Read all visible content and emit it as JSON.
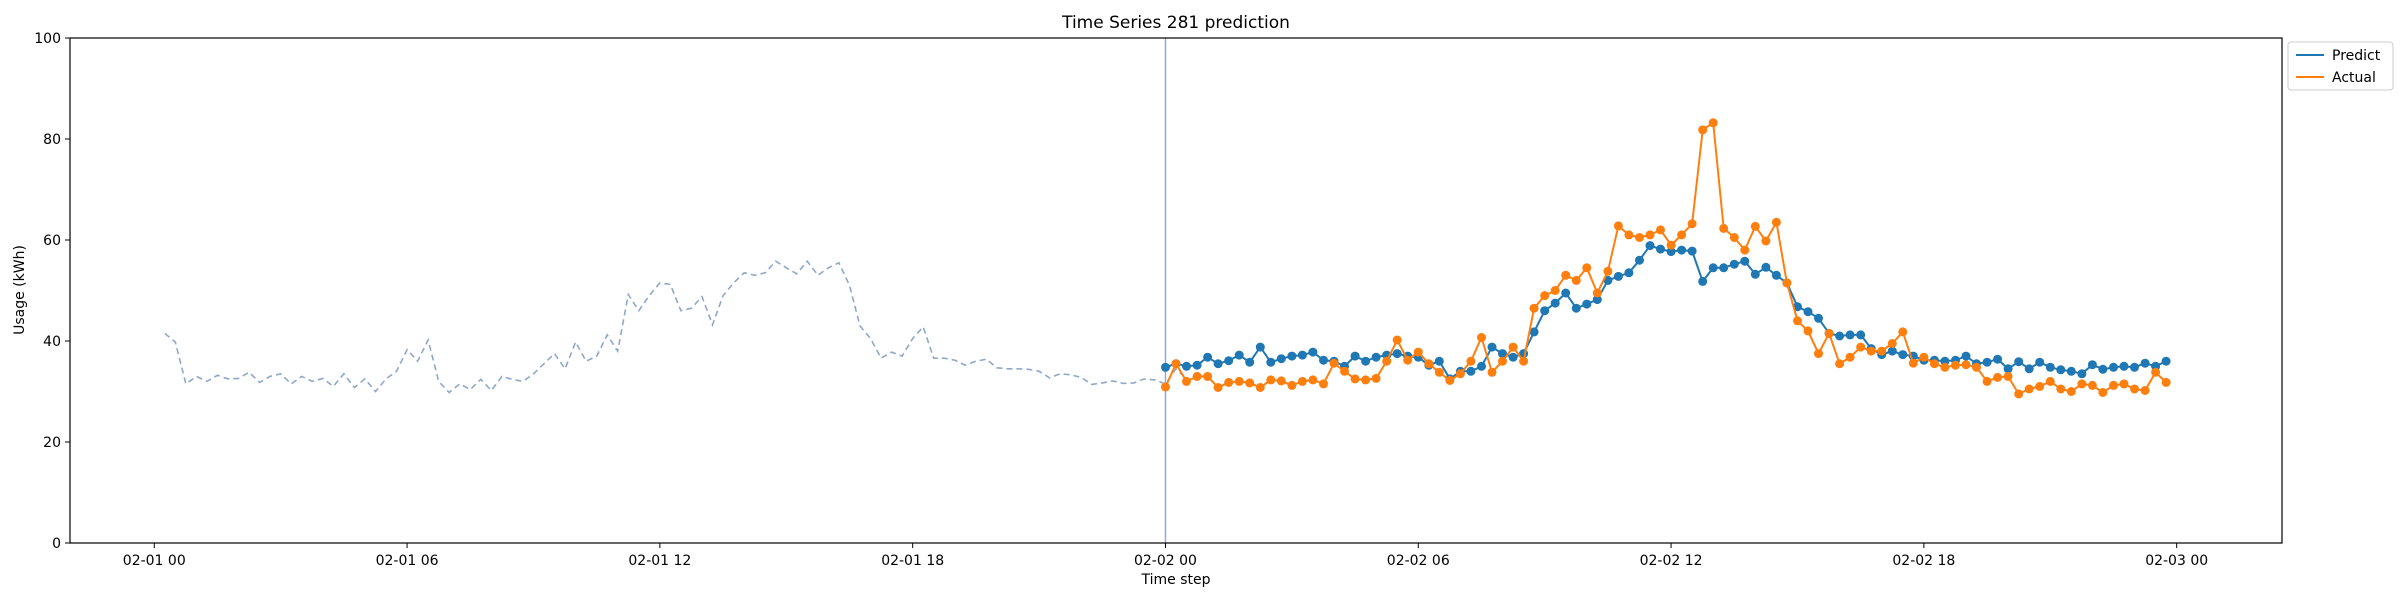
{
  "chart_data": {
    "type": "line",
    "title": "Time Series 281 prediction",
    "xlabel": "Time step",
    "ylabel": "Usage (kWh)",
    "ylim": [
      0,
      100
    ],
    "yticks": [
      0,
      20,
      40,
      60,
      80,
      100
    ],
    "xlim_hours": [
      -2.0,
      50.5
    ],
    "x_start_label": "02-01 00",
    "xticks": [
      {
        "label": "02-01 00",
        "hour": 0
      },
      {
        "label": "02-01 06",
        "hour": 6
      },
      {
        "label": "02-01 12",
        "hour": 12
      },
      {
        "label": "02-01 18",
        "hour": 18
      },
      {
        "label": "02-02 00",
        "hour": 24
      },
      {
        "label": "02-02 06",
        "hour": 30
      },
      {
        "label": "02-02 12",
        "hour": 36
      },
      {
        "label": "02-02 18",
        "hour": 42
      },
      {
        "label": "02-03 00",
        "hour": 48
      }
    ],
    "split_hour": 24,
    "legend_position": "top-right",
    "step_hours": 0.25,
    "history": {
      "start_hour": 0.25,
      "color": "#8fa8c8",
      "values": [
        41.5,
        39.8,
        31.5,
        33.0,
        32.0,
        33.2,
        32.5,
        32.6,
        33.8,
        31.8,
        33.0,
        33.5,
        31.5,
        33.0,
        32.0,
        32.6,
        31.0,
        33.5,
        30.8,
        32.5,
        30.0,
        32.5,
        34.0,
        38.3,
        36.0,
        40.2,
        32.0,
        29.8,
        31.5,
        30.4,
        32.4,
        30.2,
        33.0,
        32.4,
        32.0,
        33.5,
        35.5,
        37.5,
        34.5,
        39.8,
        36.0,
        37.0,
        41.2,
        38.0,
        49.2,
        46.0,
        49.0,
        51.5,
        51.2,
        46.0,
        46.5,
        48.8,
        43.2,
        49.0,
        51.5,
        53.5,
        53.0,
        53.5,
        55.8,
        54.5,
        53.3,
        55.8,
        53.0,
        54.5,
        55.5,
        51.0,
        43.0,
        40.5,
        36.6,
        37.8,
        37.0,
        40.5,
        42.8,
        36.6,
        36.6,
        36.2,
        35.2,
        36.0,
        36.4,
        34.7,
        34.5,
        34.5,
        34.4,
        34.0,
        32.7,
        33.5,
        33.3,
        32.8,
        31.4,
        31.7,
        32.1,
        31.6,
        31.7,
        32.5,
        32.3,
        31.5,
        34.5,
        32.5
      ]
    },
    "series": [
      {
        "name": "Predict",
        "color": "#1f77b4",
        "start_hour": 24,
        "values": [
          34.8,
          35.5,
          35.0,
          35.2,
          36.8,
          35.5,
          36.1,
          37.2,
          35.8,
          38.8,
          35.8,
          36.5,
          37.0,
          37.2,
          37.8,
          36.2,
          36.0,
          35.0,
          37.0,
          36.0,
          36.8,
          37.2,
          37.5,
          37.0,
          36.8,
          35.2,
          36.0,
          32.5,
          34.0,
          34.0,
          35.0,
          38.8,
          37.5,
          36.8,
          37.5,
          41.8,
          46.0,
          47.5,
          49.5,
          46.5,
          47.3,
          48.2,
          52.0,
          52.8,
          53.5,
          56.0,
          58.9,
          58.2,
          57.7,
          58.0,
          57.8,
          51.8,
          54.5,
          54.5,
          55.2,
          55.8,
          53.2,
          54.6,
          53.0,
          51.5,
          46.8,
          45.8,
          44.5,
          41.5,
          41.0,
          41.2,
          41.2,
          38.5,
          37.3,
          38.0,
          37.3,
          37.0,
          36.2,
          36.2,
          36.0,
          36.2,
          37.0,
          35.5,
          35.8,
          36.4,
          34.5,
          35.9,
          34.5,
          35.8,
          34.8,
          34.3,
          34.0,
          33.5,
          35.3,
          34.4,
          34.8,
          35.0,
          34.8,
          35.6,
          35.0,
          36.0
        ]
      },
      {
        "name": "Actual",
        "color": "#ff7f0e",
        "start_hour": 24,
        "values": [
          30.9,
          35.5,
          32.0,
          33.0,
          33.0,
          30.8,
          31.8,
          32.0,
          31.7,
          30.8,
          32.3,
          32.1,
          31.2,
          32.0,
          32.3,
          31.5,
          35.6,
          34.0,
          32.5,
          32.3,
          32.6,
          36.0,
          40.2,
          36.2,
          37.8,
          35.5,
          33.8,
          32.2,
          33.5,
          36.0,
          40.7,
          33.8,
          36.0,
          38.8,
          36.0,
          46.5,
          49.0,
          50.0,
          53.0,
          52.0,
          54.5,
          49.5,
          53.8,
          62.8,
          61.0,
          60.5,
          61.0,
          62.0,
          59.0,
          61.0,
          63.2,
          81.8,
          83.2,
          62.3,
          60.5,
          58.0,
          62.7,
          59.8,
          63.5,
          51.5,
          44.0,
          42.0,
          37.5,
          41.5,
          35.5,
          36.8,
          38.8,
          38.0,
          38.0,
          39.5,
          41.8,
          35.6,
          36.8,
          35.5,
          34.8,
          35.2,
          35.3,
          34.8,
          32.0,
          32.8,
          33.0,
          29.5,
          30.5,
          31.0,
          32.0,
          30.5,
          30.0,
          31.5,
          31.2,
          29.8,
          31.2,
          31.5,
          30.5,
          30.2,
          33.8,
          31.8
        ]
      }
    ]
  }
}
